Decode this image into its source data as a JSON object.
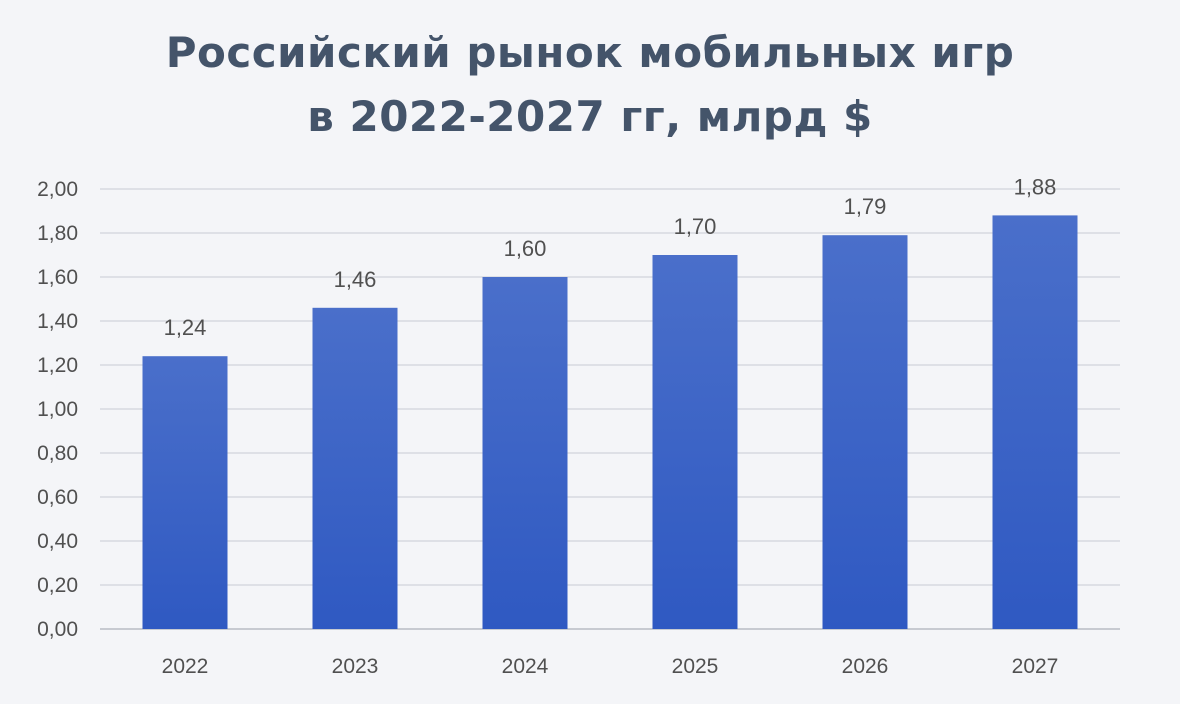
{
  "chart_data": {
    "type": "bar",
    "title_line1": "Российский рынок мобильных игр",
    "title_line2": "в 2022-2027 гг, млрд $",
    "categories": [
      "2022",
      "2023",
      "2024",
      "2025",
      "2026",
      "2027"
    ],
    "values": [
      1.24,
      1.46,
      1.6,
      1.7,
      1.79,
      1.88
    ],
    "value_labels": [
      "1,24",
      "1,46",
      "1,60",
      "1,70",
      "1,79",
      "1,88"
    ],
    "y_ticks": [
      "0,00",
      "0,20",
      "0,40",
      "0,60",
      "0,80",
      "1,00",
      "1,20",
      "1,40",
      "1,60",
      "1,80",
      "2,00"
    ],
    "ylim": [
      0,
      2
    ],
    "grid": true,
    "bar_color_top": "#4a6fca",
    "bar_color_bottom": "#2f59c2",
    "gridline_color": "#c9ccd3",
    "axis_color": "#b8bcc4"
  }
}
